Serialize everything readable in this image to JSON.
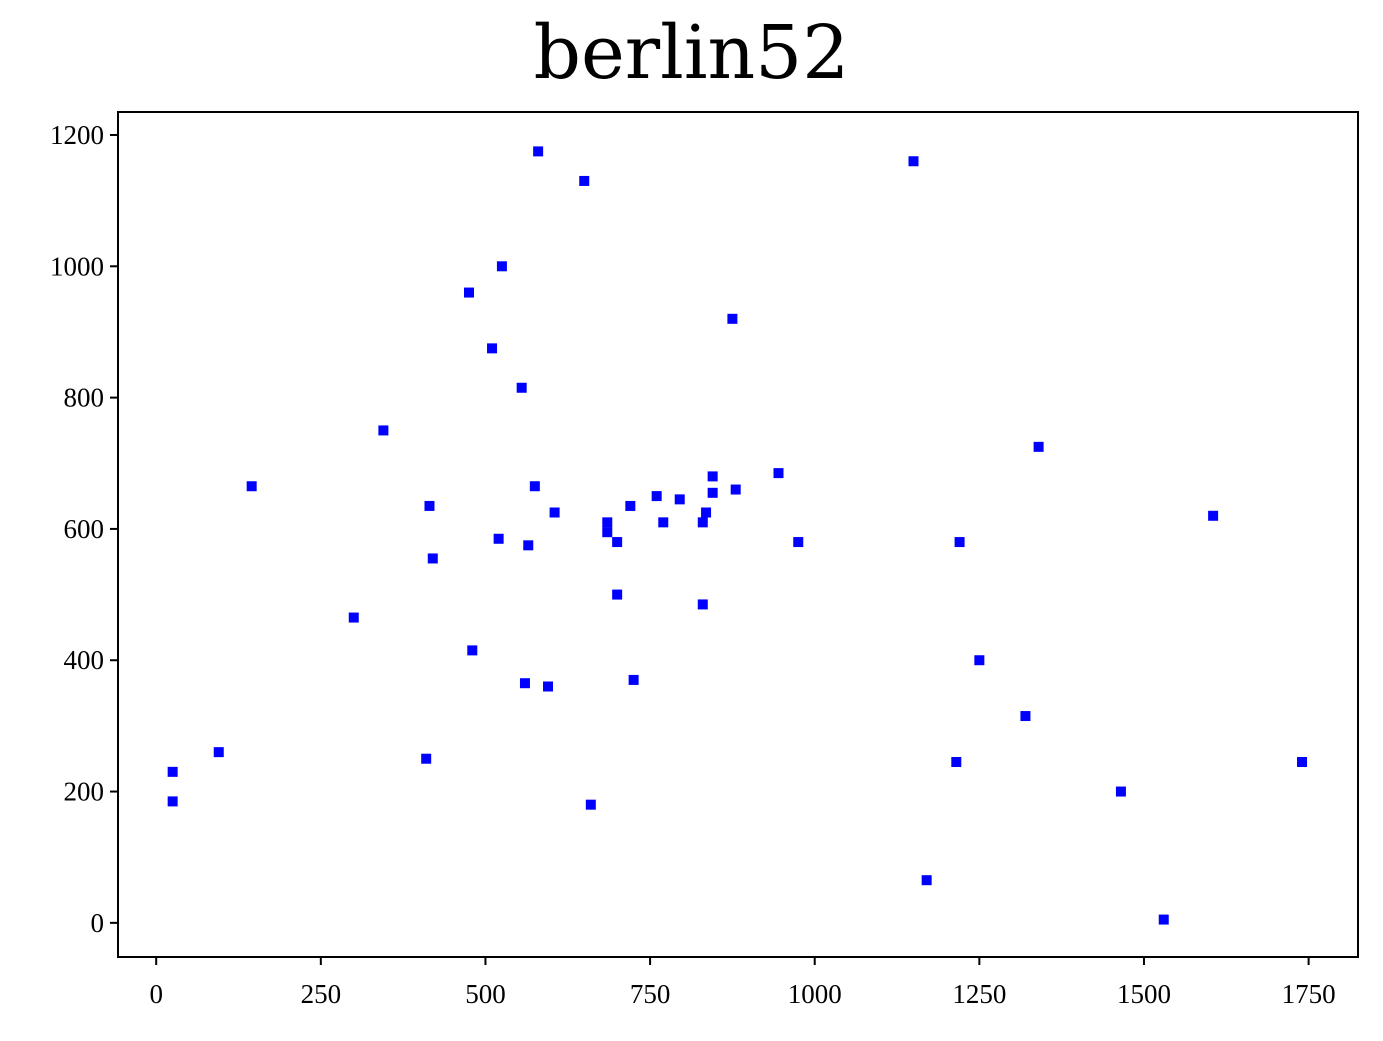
{
  "chart_data": {
    "type": "scatter",
    "title": "berlin52",
    "xlabel": "",
    "ylabel": "",
    "xlim": [
      -58,
      1825
    ],
    "ylim": [
      -52,
      1235
    ],
    "xticks": [
      0,
      250,
      500,
      750,
      1000,
      1250,
      1500,
      1750
    ],
    "yticks": [
      0,
      200,
      400,
      600,
      800,
      1000,
      1200
    ],
    "grid": false,
    "marker_color": "#0000ff",
    "points": [
      [
        565,
        575
      ],
      [
        25,
        185
      ],
      [
        345,
        750
      ],
      [
        945,
        685
      ],
      [
        845,
        655
      ],
      [
        880,
        660
      ],
      [
        25,
        230
      ],
      [
        525,
        1000
      ],
      [
        580,
        1175
      ],
      [
        650,
        1130
      ],
      [
        1605,
        620
      ],
      [
        1220,
        580
      ],
      [
        1465,
        200
      ],
      [
        1530,
        5
      ],
      [
        845,
        680
      ],
      [
        725,
        370
      ],
      [
        145,
        665
      ],
      [
        415,
        635
      ],
      [
        510,
        875
      ],
      [
        560,
        365
      ],
      [
        300,
        465
      ],
      [
        520,
        585
      ],
      [
        480,
        415
      ],
      [
        835,
        625
      ],
      [
        975,
        580
      ],
      [
        1215,
        245
      ],
      [
        1320,
        315
      ],
      [
        1250,
        400
      ],
      [
        660,
        180
      ],
      [
        410,
        250
      ],
      [
        420,
        555
      ],
      [
        575,
        665
      ],
      [
        1150,
        1160
      ],
      [
        700,
        580
      ],
      [
        685,
        595
      ],
      [
        685,
        610
      ],
      [
        770,
        610
      ],
      [
        795,
        645
      ],
      [
        720,
        635
      ],
      [
        760,
        650
      ],
      [
        475,
        960
      ],
      [
        95,
        260
      ],
      [
        875,
        920
      ],
      [
        700,
        500
      ],
      [
        555,
        815
      ],
      [
        830,
        485
      ],
      [
        1170,
        65
      ],
      [
        830,
        610
      ],
      [
        605,
        625
      ],
      [
        595,
        360
      ],
      [
        1340,
        725
      ],
      [
        1740,
        245
      ]
    ]
  }
}
